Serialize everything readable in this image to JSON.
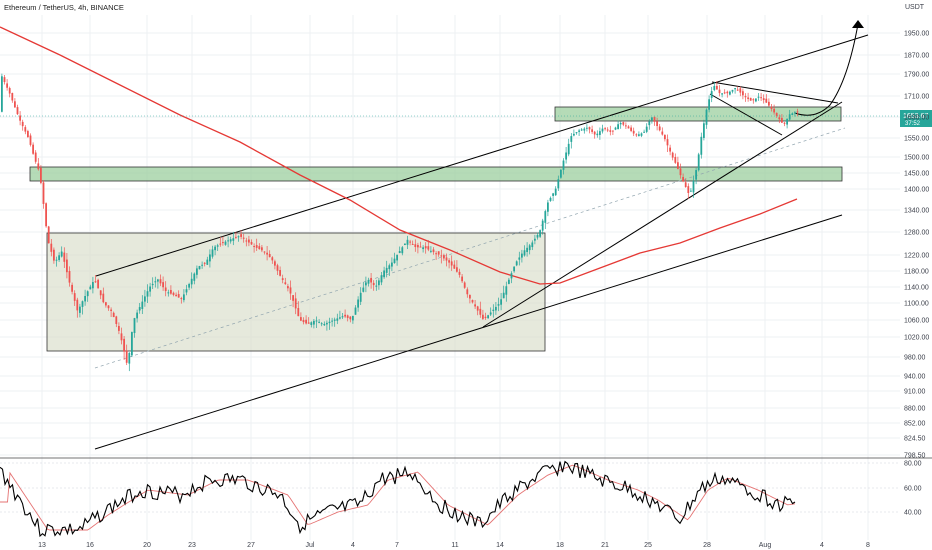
{
  "chart_data": {
    "type": "candlestick",
    "title": "Ethereum / TetherUS, 4h, BINANCE",
    "currency": "USDT",
    "price_ticks": [
      1950.0,
      1870.0,
      1790.0,
      1710.0,
      1630.0,
      1550.0,
      1500.0,
      1450.0,
      1400.0,
      1340.0,
      1280.0,
      1220.0,
      1180.0,
      1140.0,
      1100.0,
      1060.0,
      1020.0,
      980.0,
      940.0,
      910.0,
      880.0,
      852.0,
      824.5,
      798.5
    ],
    "price_tick_labels": [
      "1950.00",
      "1870.00",
      "1790.00",
      "1710.00",
      "1630.00",
      "1550.00",
      "1500.00",
      "1450.00",
      "1400.00",
      "1340.00",
      "1280.00",
      "1220.00",
      "1180.00",
      "1140.00",
      "1100.00",
      "1060.00",
      "1020.00",
      "980.00",
      "940.00",
      "910.00",
      "880.00",
      "852.00",
      "824.50",
      "798.50"
    ],
    "last_price": "1653.67",
    "last_price_sub": "37:52",
    "date_labels": [
      "13",
      "16",
      "20",
      "23",
      "27",
      "Jul",
      "4",
      "7",
      "11",
      "14",
      "18",
      "21",
      "25",
      "28",
      "Aug",
      "4",
      "8"
    ],
    "rsi_ticks": [
      "80.00",
      "60.00",
      "40.00"
    ],
    "colors": {
      "up": "#26a69a",
      "down": "#ef5350",
      "ma": "#e53935",
      "rsi": "#000000",
      "rsi_ma": "#e57373",
      "zone_green": "#a5d6a7",
      "zone_range": "#dcdfcf"
    }
  }
}
